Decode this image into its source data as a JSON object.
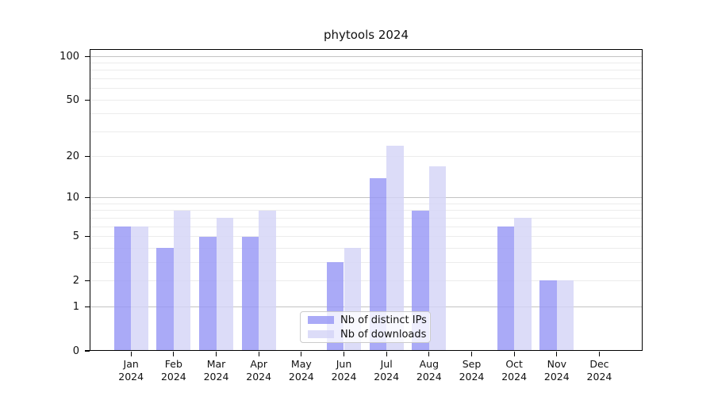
{
  "chart_data": {
    "type": "bar",
    "title": "phytools 2024",
    "xlabel": "",
    "ylabel": "",
    "categories": [
      "Jan",
      "Feb",
      "Mar",
      "Apr",
      "May",
      "Jun",
      "Jul",
      "Aug",
      "Sep",
      "Oct",
      "Nov",
      "Dec"
    ],
    "x_tick_second_line": "2024",
    "series": [
      {
        "name": "Nb of distinct IPs",
        "color": "#9797f5",
        "values": [
          6,
          4,
          5,
          5,
          0,
          3,
          14,
          8,
          0,
          6,
          2,
          0
        ]
      },
      {
        "name": "Nb of downloads",
        "color": "#d4d4f6",
        "values": [
          6,
          8,
          7,
          8,
          0,
          4,
          24,
          17,
          0,
          7,
          2,
          0
        ]
      }
    ],
    "bar_alpha": 0.82,
    "y_scale": "log1p",
    "ylim": [
      0,
      112
    ],
    "y_ticks": [
      0,
      1,
      2,
      5,
      10,
      20,
      50,
      100
    ],
    "y_major_gridlines": [
      1,
      10,
      100
    ],
    "y_minor_gridlines": [
      2,
      3,
      4,
      5,
      6,
      7,
      8,
      9,
      20,
      30,
      40,
      50,
      60,
      70,
      80,
      90
    ],
    "grid": true,
    "legend_position": "lower center",
    "colors": {
      "major_grid": "#c3c3c3",
      "minor_grid": "#ececec",
      "axis": "#000000",
      "text": "#111111"
    }
  }
}
